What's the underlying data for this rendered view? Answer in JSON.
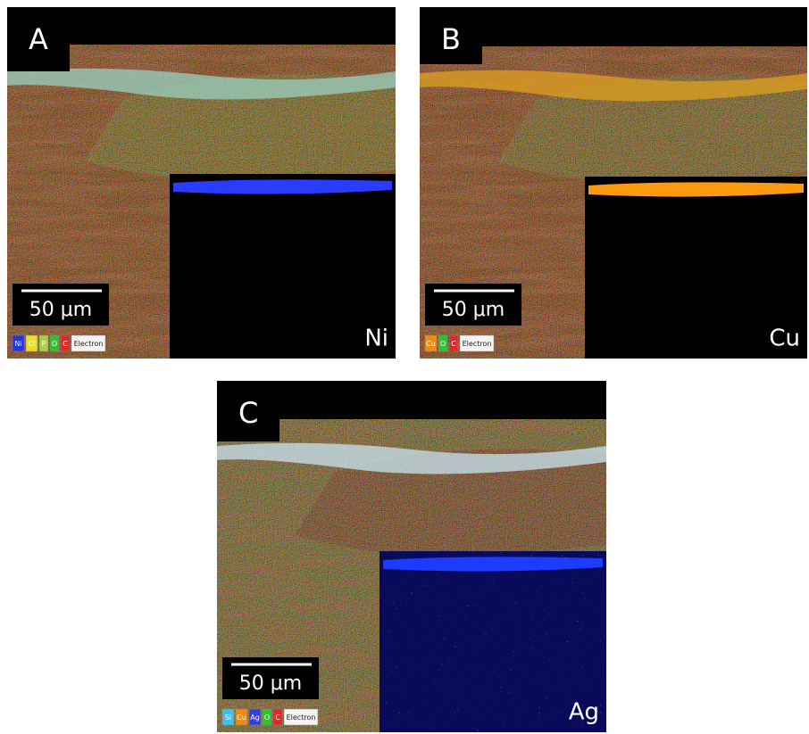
{
  "panels": [
    {
      "label": "A",
      "scale_bar": "50 μm",
      "element": "Ni",
      "legend": [
        "Ni",
        "Cl",
        "P",
        "O",
        "C",
        "Electron"
      ]
    },
    {
      "label": "B",
      "scale_bar": "50 μm",
      "element": "Cu",
      "legend": [
        "Cu",
        "O",
        "C",
        "Electron"
      ]
    },
    {
      "label": "C",
      "scale_bar": "50 μm",
      "element": "Ag",
      "legend": [
        "Si",
        "Cu",
        "Ag",
        "O",
        "C",
        "Electron"
      ]
    }
  ]
}
